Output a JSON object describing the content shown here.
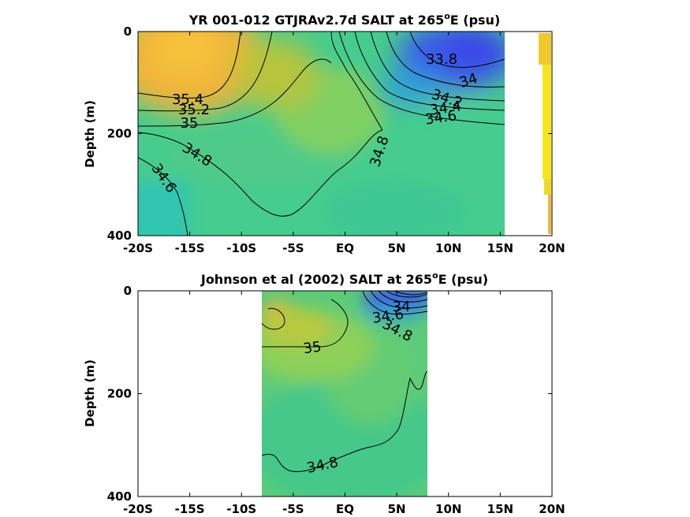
{
  "chart_data": [
    {
      "type": "contour",
      "title": "YR 001-012 GTJRAv2.7d SALT at 265",
      "title_sup": "o",
      "title_tail": "E (psu)",
      "ylabel": "Depth (m)",
      "xlim": [
        -20,
        20
      ],
      "ylim": [
        0,
        400
      ],
      "y_inverted": true,
      "x_ticks": [
        -20,
        -15,
        -10,
        -5,
        0,
        5,
        10,
        15,
        20
      ],
      "x_tick_labels": [
        "-20S",
        "-15S",
        "-10S",
        "-5S",
        "EQ",
        "5N",
        "10N",
        "15N",
        "20N"
      ],
      "y_ticks": [
        0,
        200,
        400
      ],
      "y_tick_labels": [
        "0",
        "200",
        "400"
      ],
      "contour_labels": [
        "33.8",
        "34",
        "34.2",
        "34.4",
        "34.6",
        "34.8",
        "35",
        "35.2",
        "35.4",
        "34.8",
        "34.6"
      ],
      "colors": {
        "fresh": "#3b4fe6",
        "mid_fresh": "#2f9fd8",
        "mid": "#3fc78e",
        "mid_salty": "#8ccc4e",
        "salty": "#f2b634",
        "very_salty": "#f5e11c"
      }
    },
    {
      "type": "contour",
      "title": "Johnson et al (2002) SALT at 265",
      "title_sup": "o",
      "title_tail": "E (psu)",
      "ylabel": "Depth (m)",
      "xlim": [
        -20,
        20
      ],
      "ylim": [
        0,
        400
      ],
      "y_inverted": true,
      "data_extent_x": [
        -8,
        8
      ],
      "x_ticks": [
        -20,
        -15,
        -10,
        -5,
        0,
        5,
        10,
        15,
        20
      ],
      "x_tick_labels": [
        "-20S",
        "-15S",
        "-10S",
        "-5S",
        "EQ",
        "5N",
        "10N",
        "15N",
        "20N"
      ],
      "y_ticks": [
        0,
        200,
        400
      ],
      "y_tick_labels": [
        "0",
        "200",
        "400"
      ],
      "contour_labels": [
        "34",
        "34.6",
        "34.8",
        "35",
        "34.8"
      ],
      "colors": {
        "fresh": "#3b3fe6",
        "mid": "#3fc78e",
        "mid_salty": "#8ccc4e",
        "salty": "#e6b23a"
      }
    }
  ]
}
